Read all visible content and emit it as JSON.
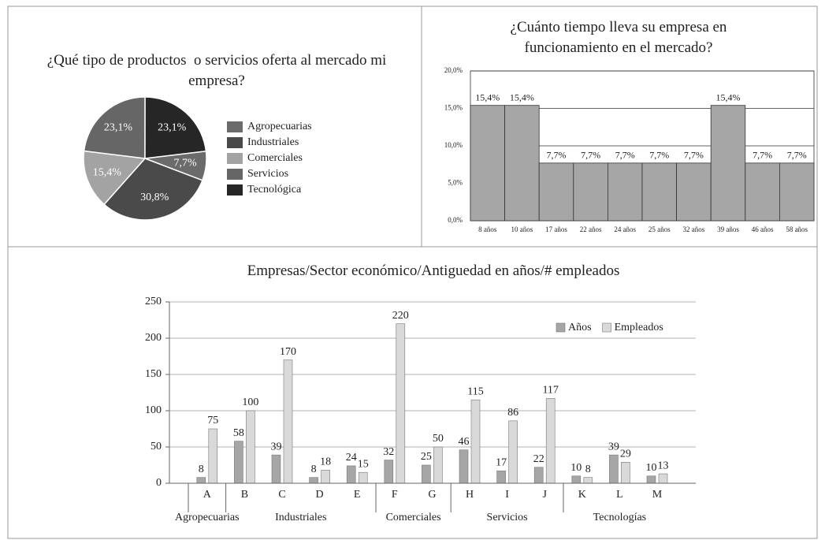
{
  "chart_data": [
    {
      "type": "pie",
      "title": "¿Qué tipo de productos  o servicios oferta al mercado mi empresa?",
      "categories": [
        "Agropecuarias",
        "Industriales",
        "Comerciales",
        "Servicios",
        "Tecnológica"
      ],
      "values": [
        7.7,
        30.8,
        15.4,
        23.1,
        23.1
      ],
      "value_labels": [
        "7,7%",
        "30,8%",
        "15,4%",
        "23,1%",
        "23,1%"
      ],
      "colors": [
        "#6b6b6b",
        "#4a4a4a",
        "#a3a3a3",
        "#666666",
        "#262626"
      ]
    },
    {
      "type": "bar",
      "title": "¿Cuánto tiempo lleva su empresa en funcionamiento en el mercado?",
      "categories": [
        "8 años",
        "10 años",
        "17 años",
        "22 años",
        "24 años",
        "25 años",
        "32 años",
        "39 años",
        "46 años",
        "58 años"
      ],
      "values": [
        15.4,
        15.4,
        7.7,
        7.7,
        7.7,
        7.7,
        7.7,
        15.4,
        7.7,
        7.7
      ],
      "value_labels": [
        "15,4%",
        "15,4%",
        "7,7%",
        "7,7%",
        "7,7%",
        "7,7%",
        "7,7%",
        "15,4%",
        "7,7%",
        "7,7%"
      ],
      "color": "#a6a6a6",
      "ylim": [
        0,
        20
      ],
      "yticks": [
        {
          "value": 0,
          "label": "0,0%"
        },
        {
          "value": 5,
          "label": "5,0%"
        },
        {
          "value": 10,
          "label": "10,0%"
        },
        {
          "value": 15,
          "label": "15,0%"
        },
        {
          "value": 20,
          "label": "20,0%"
        }
      ],
      "grid": true
    },
    {
      "type": "grouped_bar",
      "title": "Empresas/Sector económico/Antiguedad en años/# empleados",
      "groups": [
        {
          "name": "Agropecuarias",
          "categories": [
            "A"
          ]
        },
        {
          "name": "Industriales",
          "categories": [
            "B",
            "C",
            "D",
            "E"
          ]
        },
        {
          "name": "Comerciales",
          "categories": [
            "F",
            "G"
          ]
        },
        {
          "name": "Servicios",
          "categories": [
            "H",
            "I",
            "J"
          ]
        },
        {
          "name": "Tecnologías",
          "categories": [
            "K",
            "L",
            "M"
          ]
        }
      ],
      "series": [
        {
          "name": "Años",
          "color": "#a6a6a6",
          "values": [
            8,
            58,
            39,
            8,
            24,
            32,
            25,
            46,
            17,
            22,
            10,
            39,
            10
          ]
        },
        {
          "name": "Empleados",
          "color": "#d9d9d9",
          "values": [
            75,
            100,
            170,
            18,
            15,
            220,
            50,
            115,
            86,
            117,
            8,
            29,
            13
          ]
        }
      ],
      "ylim": [
        0,
        250
      ],
      "yticks": [
        0,
        50,
        100,
        150,
        200,
        250
      ],
      "grid": true,
      "legend": "top-right"
    }
  ]
}
